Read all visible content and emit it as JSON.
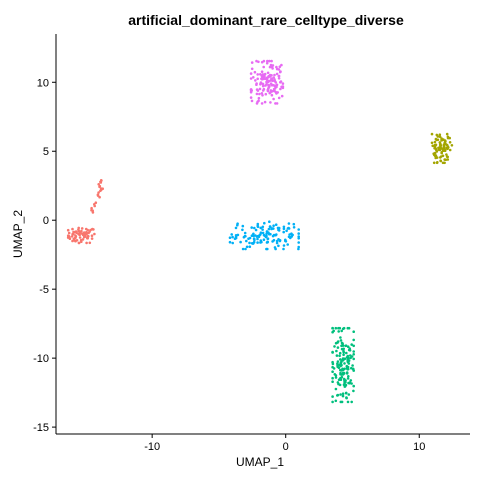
{
  "chart_data": {
    "type": "scatter",
    "title": "artificial_dominant_rare_celltype_diverse",
    "xlabel": "UMAP_1",
    "ylabel": "UMAP_2",
    "xlim": [
      -17.2,
      13.8
    ],
    "ylim": [
      -15.5,
      13.5
    ],
    "x_ticks": [
      -10,
      0,
      10
    ],
    "y_ticks": [
      -15,
      -10,
      -5,
      0,
      5,
      10
    ],
    "grid": false,
    "legend": "none",
    "clusters": [
      {
        "color": "#F8766D",
        "shape": "blob",
        "center": [
          -15.3,
          -1.1
        ],
        "spread": [
          1.0,
          0.55
        ],
        "count": 70
      },
      {
        "color": "#F8766D",
        "shape": "path",
        "path": [
          [
            -14.6,
            0.6
          ],
          [
            -14.2,
            1.5
          ],
          [
            -13.9,
            2.2
          ],
          [
            -13.8,
            2.9
          ]
        ],
        "jitter": 0.15,
        "count": 22
      },
      {
        "color": "#A3A500",
        "shape": "blob",
        "center": [
          11.7,
          5.2
        ],
        "spread": [
          0.75,
          1.05
        ],
        "count": 90
      },
      {
        "color": "#00BF7D",
        "shape": "blob",
        "center": [
          4.3,
          -10.5
        ],
        "spread": [
          0.8,
          2.7
        ],
        "count": 160
      },
      {
        "color": "#00B0F6",
        "shape": "blob",
        "center": [
          -1.6,
          -1.1
        ],
        "spread": [
          2.6,
          1.0
        ],
        "count": 140
      },
      {
        "color": "#E76BF3",
        "shape": "blob",
        "center": [
          -1.4,
          10.0
        ],
        "spread": [
          1.2,
          1.55
        ],
        "count": 150
      }
    ]
  }
}
